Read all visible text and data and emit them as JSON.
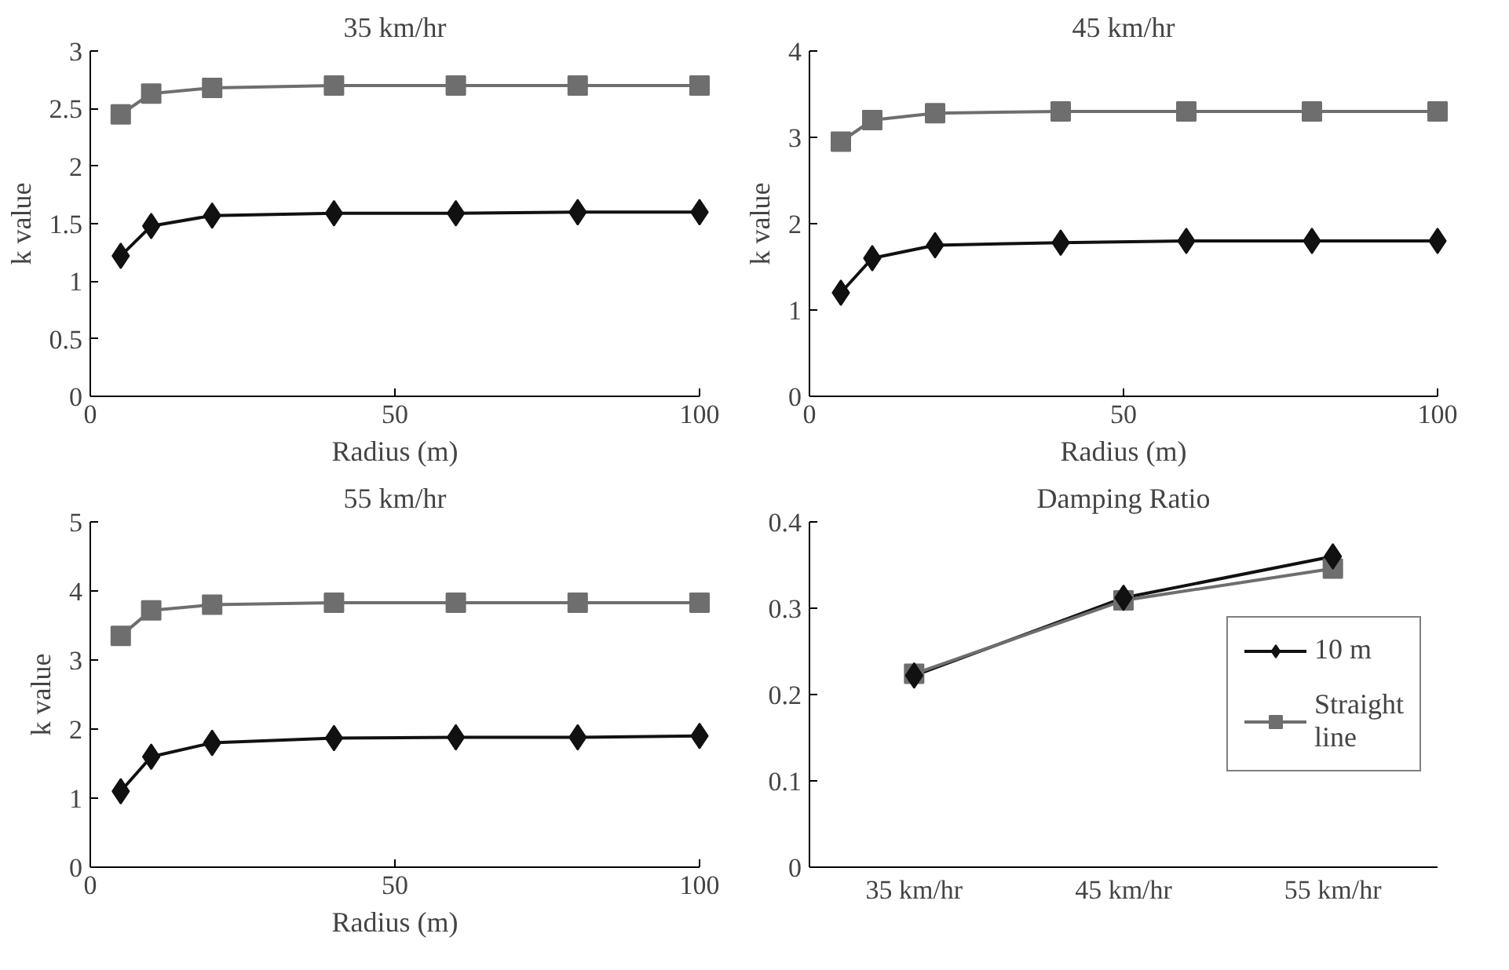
{
  "chart_data": [
    {
      "type": "line",
      "title": "35 km/hr",
      "xlabel": "Radius (m)",
      "ylabel": "k value",
      "x": [
        5,
        10,
        20,
        40,
        60,
        80,
        100
      ],
      "xlim": [
        0,
        100
      ],
      "xticks": [
        0,
        50,
        100
      ],
      "ylim": [
        0,
        3
      ],
      "yticks": [
        0,
        0.5,
        1,
        1.5,
        2,
        2.5,
        3
      ],
      "grid": false,
      "legend": false,
      "series": [
        {
          "color": "#111111",
          "marker": "diamond",
          "values": [
            1.22,
            1.48,
            1.57,
            1.59,
            1.59,
            1.6,
            1.6
          ]
        },
        {
          "color": "#6e6e6e",
          "marker": "square",
          "values": [
            2.45,
            2.63,
            2.68,
            2.7,
            2.7,
            2.7,
            2.7
          ]
        }
      ]
    },
    {
      "type": "line",
      "title": "45 km/hr",
      "xlabel": "Radius (m)",
      "ylabel": "k value",
      "x": [
        5,
        10,
        20,
        40,
        60,
        80,
        100
      ],
      "xlim": [
        0,
        100
      ],
      "xticks": [
        0,
        50,
        100
      ],
      "ylim": [
        0,
        4
      ],
      "yticks": [
        0,
        1,
        2,
        3,
        4
      ],
      "grid": false,
      "legend": false,
      "series": [
        {
          "color": "#111111",
          "marker": "diamond",
          "values": [
            1.2,
            1.6,
            1.75,
            1.78,
            1.8,
            1.8,
            1.8
          ]
        },
        {
          "color": "#6e6e6e",
          "marker": "square",
          "values": [
            2.95,
            3.2,
            3.28,
            3.3,
            3.3,
            3.3,
            3.3
          ]
        }
      ]
    },
    {
      "type": "line",
      "title": "55 km/hr",
      "xlabel": "Radius (m)",
      "ylabel": "k value",
      "x": [
        5,
        10,
        20,
        40,
        60,
        80,
        100
      ],
      "xlim": [
        0,
        100
      ],
      "xticks": [
        0,
        50,
        100
      ],
      "ylim": [
        0,
        5
      ],
      "yticks": [
        0,
        1,
        2,
        3,
        4,
        5
      ],
      "grid": false,
      "legend": false,
      "series": [
        {
          "color": "#111111",
          "marker": "diamond",
          "values": [
            1.1,
            1.6,
            1.8,
            1.87,
            1.88,
            1.88,
            1.9
          ]
        },
        {
          "color": "#6e6e6e",
          "marker": "square",
          "values": [
            3.35,
            3.72,
            3.8,
            3.83,
            3.83,
            3.83,
            3.83
          ]
        }
      ]
    },
    {
      "type": "line",
      "title": "Damping Ratio",
      "categories": [
        "35 km/hr",
        "45 km/hr",
        "55 km/hr"
      ],
      "ylim": [
        0,
        0.4
      ],
      "yticks": [
        0,
        0.1,
        0.2,
        0.3,
        0.4
      ],
      "grid": false,
      "legend": "right",
      "series": [
        {
          "name": "10 m",
          "color": "#111111",
          "marker": "diamond",
          "values": [
            0.222,
            0.312,
            0.36
          ]
        },
        {
          "name": "Straight\nline",
          "color": "#6e6e6e",
          "marker": "square",
          "values": [
            0.224,
            0.309,
            0.346
          ]
        }
      ]
    }
  ]
}
